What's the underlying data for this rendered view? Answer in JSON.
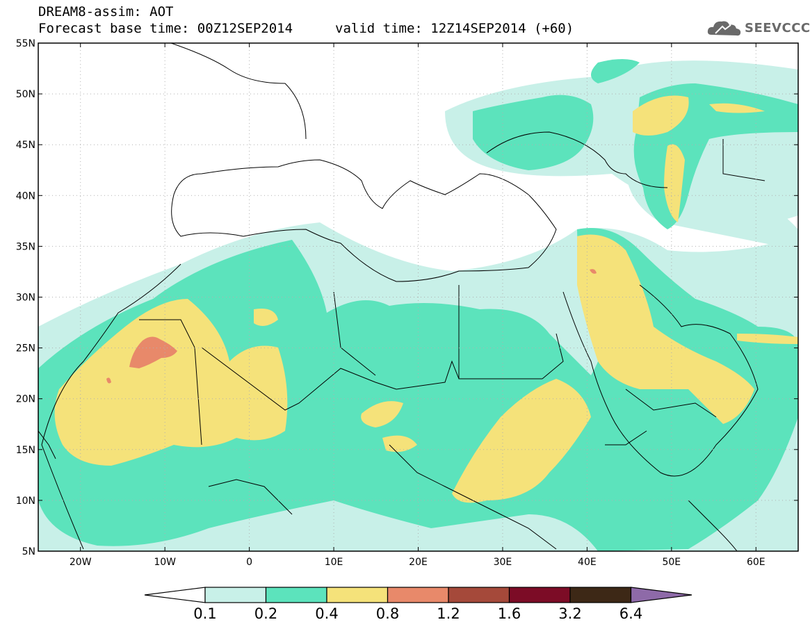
{
  "header": {
    "line1": "DREAM8-assim: AOT",
    "line2": "Forecast base time: 00Z12SEP2014",
    "line3": "valid time: 12Z14SEP2014 (+60)"
  },
  "logo": {
    "text": "SEEVCCC",
    "icon": "cloud-icon"
  },
  "map": {
    "lat_ticks": [
      "55N",
      "50N",
      "45N",
      "40N",
      "35N",
      "30N",
      "25N",
      "20N",
      "15N",
      "10N",
      "5N"
    ],
    "lon_ticks": [
      "20W",
      "10W",
      "0",
      "10E",
      "20E",
      "30E",
      "40E",
      "50E",
      "60E"
    ],
    "lon_range": [
      -25,
      65
    ],
    "lat_range": [
      5,
      55
    ],
    "grid": true
  },
  "colorbar": {
    "labels": [
      "0.1",
      "0.2",
      "0.4",
      "0.8",
      "1.2",
      "1.6",
      "3.2",
      "6.4"
    ],
    "colors": [
      "#ffffff",
      "#c8f0e8",
      "#5ce3bc",
      "#f5e27a",
      "#e8896a",
      "#a5493a",
      "#7c0c26",
      "#3d2816",
      "#8e6aa8"
    ]
  },
  "colors": {
    "level1": "#c8f0e8",
    "level2": "#5ce3bc",
    "level3": "#f5e27a",
    "level4": "#e8896a"
  }
}
